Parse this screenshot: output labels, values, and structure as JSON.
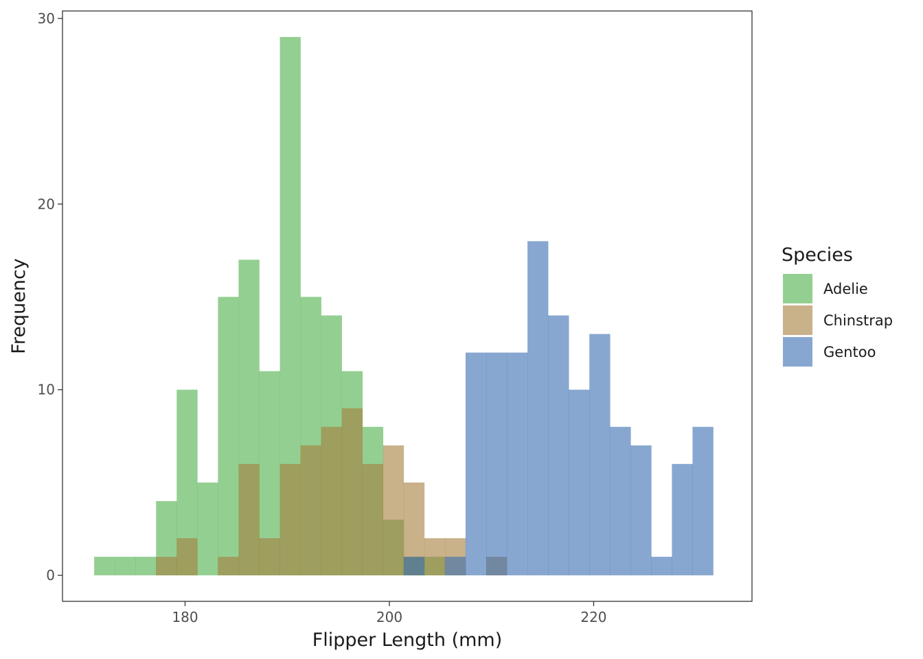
{
  "chart_data": {
    "type": "bar",
    "subtype": "histogram",
    "xlabel": "Flipper Length (mm)",
    "ylabel": "Frequency",
    "xlim": [
      168,
      235.5
    ],
    "ylim": [
      -1.4,
      30.4
    ],
    "x_ticks": [
      180,
      200,
      220
    ],
    "y_ticks": [
      0,
      10,
      20,
      30
    ],
    "bin_width": 2.02,
    "bin_starts": [
      171.1,
      173.12,
      175.14,
      177.16,
      179.18,
      181.2,
      183.22,
      185.24,
      187.26,
      189.28,
      191.3,
      193.32,
      195.34,
      197.36,
      199.38,
      201.4,
      203.42,
      205.44,
      207.46,
      209.48,
      211.5,
      213.52,
      215.54,
      217.56,
      219.58,
      221.6,
      223.62,
      225.64,
      227.66,
      229.68
    ],
    "grid": false,
    "border": true,
    "legend_position": "right",
    "legend_title": "Species",
    "opacity": 0.6,
    "series": [
      {
        "name": "Adelie",
        "color": "#4daf4a",
        "values": [
          1,
          1,
          1,
          4,
          10,
          5,
          15,
          17,
          11,
          29,
          15,
          14,
          11,
          8,
          3,
          1,
          1,
          0,
          0,
          0,
          0,
          0,
          0,
          0,
          0,
          0,
          0,
          0,
          0,
          0
        ]
      },
      {
        "name": "Chinstrap",
        "color": "#a57d3c",
        "values": [
          0,
          0,
          0,
          1,
          2,
          0,
          1,
          6,
          2,
          6,
          7,
          8,
          9,
          6,
          7,
          5,
          2,
          2,
          0,
          1,
          0,
          0,
          0,
          0,
          0,
          0,
          0,
          0,
          0,
          0
        ]
      },
      {
        "name": "Gentoo",
        "color": "#386cb0",
        "values": [
          0,
          0,
          0,
          0,
          0,
          0,
          0,
          0,
          0,
          0,
          0,
          0,
          0,
          0,
          0,
          1,
          0,
          1,
          12,
          12,
          12,
          18,
          14,
          10,
          13,
          8,
          7,
          1,
          6,
          8
        ]
      }
    ]
  }
}
